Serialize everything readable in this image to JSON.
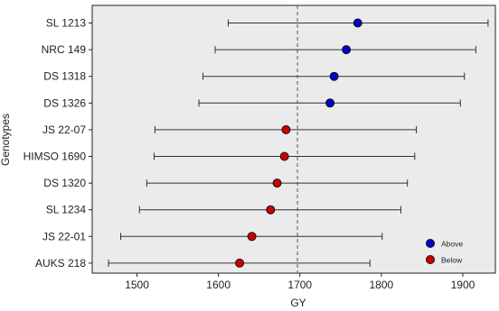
{
  "chart_data": {
    "type": "scatter",
    "title": "",
    "xlabel": "GY",
    "ylabel": "Genotypes",
    "xlim": [
      1445,
      1940
    ],
    "xticks": [
      1500,
      1600,
      1700,
      1800,
      1900
    ],
    "grid": false,
    "reference_line": 1697,
    "legend_position": "bottom-right",
    "legend": [
      {
        "label": "Above",
        "color": "#0000cc"
      },
      {
        "label": "Below",
        "color": "#cc0000"
      }
    ],
    "categories": [
      "SL 1213",
      "NRC 149",
      "DS 1318",
      "DS 1326",
      "JS 22-07",
      "HIMSO 1690",
      "DS 1320",
      "SL 1234",
      "JS 22-01",
      "AUKS 218"
    ],
    "values": [
      1771,
      1757,
      1742,
      1737,
      1683,
      1681,
      1672,
      1664,
      1641,
      1626
    ],
    "lower": [
      1612,
      1596,
      1581,
      1576,
      1522,
      1521,
      1512,
      1503,
      1480,
      1465
    ],
    "upper": [
      1931,
      1916,
      1902,
      1897,
      1843,
      1841,
      1832,
      1824,
      1801,
      1786
    ],
    "group": [
      "Above",
      "Above",
      "Above",
      "Above",
      "Below",
      "Below",
      "Below",
      "Below",
      "Below",
      "Below"
    ]
  }
}
